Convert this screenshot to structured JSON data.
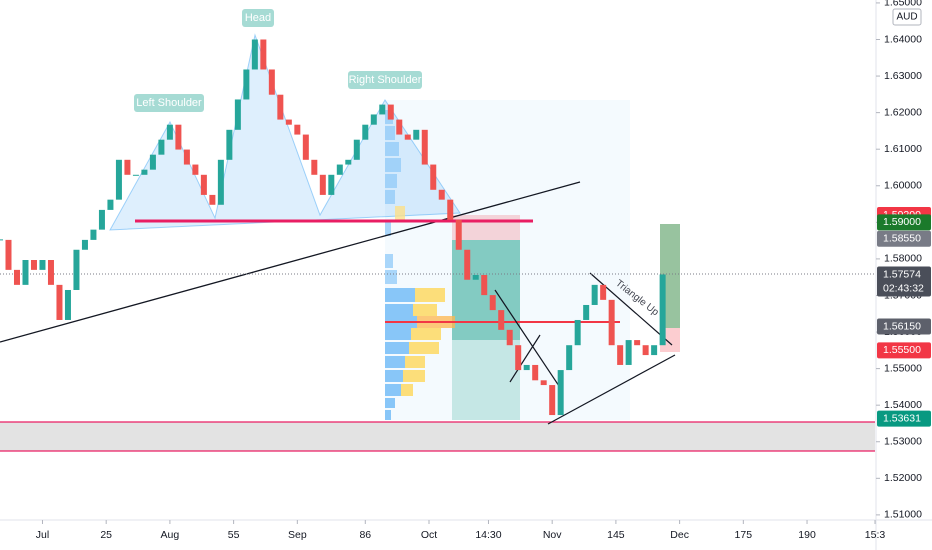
{
  "chart_data": {
    "type": "candlestick",
    "currency": "AUD",
    "x": [
      0,
      2,
      4,
      6,
      8,
      10,
      12,
      14,
      16,
      18,
      20,
      22,
      24,
      26,
      28,
      30,
      32,
      34,
      36,
      38,
      40,
      42,
      44,
      46,
      48,
      50,
      52,
      54,
      56,
      58,
      60,
      62,
      64,
      66,
      68,
      70,
      72,
      74,
      76,
      78,
      80,
      82,
      84,
      86,
      88,
      90,
      92,
      94,
      96,
      98,
      100,
      102,
      104,
      106,
      108,
      110,
      112,
      114,
      116,
      118,
      120,
      122,
      124,
      126,
      128,
      130,
      132,
      134,
      136,
      138,
      140,
      142,
      144,
      146,
      148,
      150,
      152,
      154,
      156
    ],
    "values": [
      1.5852,
      1.577,
      1.5729,
      1.5797,
      1.577,
      1.5797,
      1.5729,
      1.5633,
      1.5715,
      1.5825,
      1.5852,
      1.588,
      1.5934,
      1.5962,
      1.6071,
      1.603,
      1.603,
      1.6044,
      1.6085,
      1.6126,
      1.6167,
      1.6099,
      1.6058,
      1.603,
      1.5975,
      1.5948,
      1.6071,
      1.6153,
      1.6236,
      1.6318,
      1.64,
      1.6318,
      1.6249,
      1.6181,
      1.6167,
      1.614,
      1.6071,
      1.603,
      1.5975,
      1.603,
      1.6058,
      1.6071,
      1.6126,
      1.6167,
      1.6195,
      1.6222,
      1.6181,
      1.614,
      1.6126,
      1.6153,
      1.6058,
      1.5989,
      1.5962,
      1.5907,
      1.5825,
      1.5743,
      1.5756,
      1.5701,
      1.566,
      1.5606,
      1.5564,
      1.5496,
      1.551,
      1.5468,
      1.5455,
      1.5373,
      1.5496,
      1.5564,
      1.5633,
      1.5674,
      1.5729,
      1.5688,
      1.5564,
      1.551,
      1.5578,
      1.5564,
      1.5537,
      1.5564,
      1.57574
    ],
    "up_color": "#26a69a",
    "down_color": "#ef5350",
    "xlim": [
      0,
      206
    ],
    "xticks": [
      {
        "value": 10,
        "label": "Jul"
      },
      25,
      {
        "value": 40,
        "label": "Aug"
      },
      55,
      {
        "value": 70,
        "label": "Sep"
      },
      86,
      {
        "value": 101,
        "label": "Oct"
      },
      {
        "value": 115,
        "label": "14:30"
      },
      {
        "value": 130,
        "label": "Nov"
      },
      145,
      {
        "value": 160,
        "label": "Dec"
      },
      175,
      190,
      {
        "value": 206,
        "label": "15:3"
      }
    ],
    "ylim": [
      1.5086,
      1.6508
    ],
    "yticks": [
      {
        "value": 1.65,
        "label": "1.65000"
      },
      {
        "value": 1.64,
        "label": "1.64000"
      },
      {
        "value": 1.63,
        "label": "1.63000"
      },
      {
        "value": 1.62,
        "label": "1.62000"
      },
      {
        "value": 1.61,
        "label": "1.61000"
      },
      {
        "value": 1.6,
        "label": "1.60000"
      },
      {
        "value": 1.59,
        "label": "1.59000"
      },
      {
        "value": 1.58,
        "label": "1.58000"
      },
      {
        "value": 1.57,
        "label": "1.57000"
      },
      {
        "value": 1.56,
        "label": "1.56000"
      },
      {
        "value": 1.55,
        "label": "1.55000"
      },
      {
        "value": 1.54,
        "label": "1.54000"
      },
      {
        "value": 1.53,
        "label": "1.53000"
      },
      {
        "value": 1.52,
        "label": "1.52000"
      },
      {
        "value": 1.51,
        "label": "1.51000"
      }
    ],
    "price_tags": [
      {
        "value": 1.592,
        "label": "1.59200",
        "color": "#f23645"
      },
      {
        "value": 1.59,
        "label": "1.59000",
        "color": "#1b7a2b"
      },
      {
        "value": 1.5855,
        "label": "1.58550",
        "color": "#787b86"
      },
      {
        "value": 1.57574,
        "label": "1.57574",
        "color": "#4a4e59",
        "countdown": "02:43:32"
      },
      {
        "value": 1.5615,
        "label": "1.56150",
        "color": "#5d606b"
      },
      {
        "value": 1.555,
        "label": "1.55500",
        "color": "#f23645"
      },
      {
        "value": 1.53631,
        "label": "1.53631",
        "color": "#089981"
      }
    ],
    "annotations": [
      "Left Shoulder",
      "Head",
      "Right Shoulder",
      "Triangle Up"
    ]
  }
}
